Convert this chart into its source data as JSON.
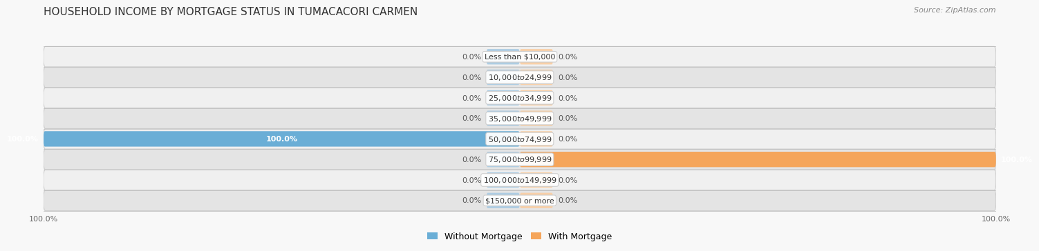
{
  "title": "HOUSEHOLD INCOME BY MORTGAGE STATUS IN TUMACACORI CARMEN",
  "source": "Source: ZipAtlas.com",
  "categories": [
    "Less than $10,000",
    "$10,000 to $24,999",
    "$25,000 to $34,999",
    "$35,000 to $49,999",
    "$50,000 to $74,999",
    "$75,000 to $99,999",
    "$100,000 to $149,999",
    "$150,000 or more"
  ],
  "without_mortgage": [
    0.0,
    0.0,
    0.0,
    0.0,
    100.0,
    0.0,
    0.0,
    0.0
  ],
  "with_mortgage": [
    0.0,
    0.0,
    0.0,
    0.0,
    0.0,
    100.0,
    0.0,
    0.0
  ],
  "color_without": "#6aaed6",
  "color_with": "#f5a55a",
  "color_without_light": "#aecde3",
  "color_with_light": "#f8d0a8",
  "row_bg_light": "#f0f0f0",
  "row_bg_dark": "#e4e4e4",
  "fig_bg": "#f8f8f8",
  "xlim_left": -100,
  "xlim_right": 100,
  "stub_size": 7,
  "title_fontsize": 11,
  "source_fontsize": 8,
  "label_fontsize": 8,
  "value_fontsize": 8,
  "tick_fontsize": 8,
  "legend_fontsize": 9
}
